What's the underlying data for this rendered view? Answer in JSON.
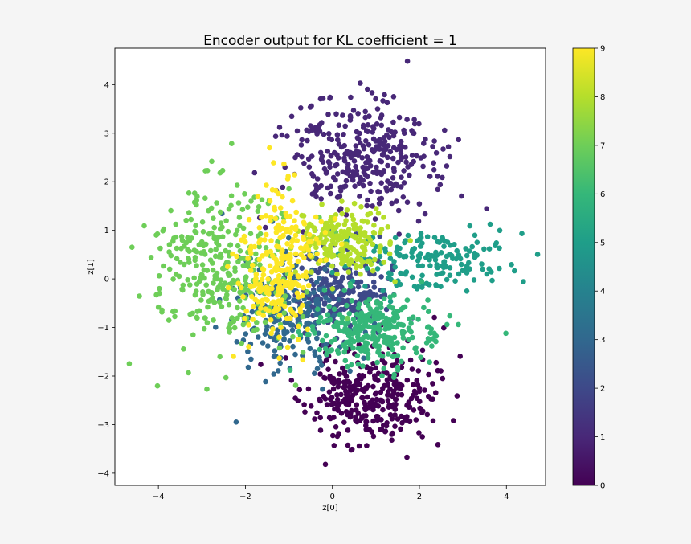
{
  "chart_data": {
    "type": "scatter",
    "title": "Encoder output for KL coefficient = 1",
    "xlabel": "z[0]",
    "ylabel": "z[1]",
    "xlim": [
      -5,
      4.9
    ],
    "ylim": [
      -4.25,
      4.75
    ],
    "x_ticks": [
      -4,
      -2,
      0,
      2,
      4
    ],
    "x_tick_labels": [
      "−4",
      "−2",
      "0",
      "2",
      "4"
    ],
    "y_ticks": [
      -4,
      -3,
      -2,
      -1,
      0,
      1,
      2,
      3,
      4
    ],
    "y_tick_labels": [
      "−4",
      "−3",
      "−2",
      "−1",
      "0",
      "1",
      "2",
      "3",
      "4"
    ],
    "grid": false,
    "colorbar": {
      "colormap": "viridis",
      "range": [
        0,
        9
      ],
      "ticks": [
        0,
        1,
        2,
        3,
        4,
        5,
        6,
        7,
        8,
        9
      ],
      "tick_labels": [
        "0",
        "1",
        "2",
        "3",
        "4",
        "5",
        "6",
        "7",
        "8",
        "9"
      ],
      "stops": [
        "#440154",
        "#482878",
        "#3e4989",
        "#31688e",
        "#26828e",
        "#1f9e89",
        "#35b779",
        "#6ece58",
        "#b5de2b",
        "#fde725"
      ]
    },
    "clusters": [
      {
        "label": 0,
        "color": "#440154",
        "center": [
          0.85,
          -2.45
        ],
        "spread": [
          0.72,
          0.48
        ],
        "n": 320,
        "seed": 11
      },
      {
        "label": 1,
        "color": "#482878",
        "center": [
          0.65,
          2.45
        ],
        "spread": [
          0.85,
          0.62
        ],
        "n": 330,
        "seed": 23
      },
      {
        "label": 2,
        "color": "#3e4989",
        "center": [
          0.25,
          -0.3
        ],
        "spread": [
          0.55,
          0.42
        ],
        "n": 210,
        "seed": 37
      },
      {
        "label": 3,
        "color": "#31688e",
        "center": [
          -1.0,
          -0.6
        ],
        "spread": [
          0.6,
          0.7
        ],
        "n": 220,
        "seed": 41
      },
      {
        "label": 5,
        "color": "#1f9e89",
        "center": [
          2.2,
          0.4
        ],
        "spread": [
          0.95,
          0.3
        ],
        "n": 170,
        "seed": 53
      },
      {
        "label": 6,
        "color": "#35b779",
        "center": [
          0.9,
          -1.05
        ],
        "spread": [
          0.75,
          0.35
        ],
        "n": 280,
        "seed": 67
      },
      {
        "label": 7,
        "color": "#6ece58",
        "center": [
          -2.55,
          0.3
        ],
        "spread": [
          0.85,
          0.85
        ],
        "n": 340,
        "seed": 71
      },
      {
        "label": 8,
        "color": "#b5de2b",
        "center": [
          0.2,
          0.8
        ],
        "spread": [
          0.55,
          0.35
        ],
        "n": 200,
        "seed": 83
      },
      {
        "label": 9,
        "color": "#fde725",
        "center": [
          -1.25,
          0.2
        ],
        "spread": [
          0.45,
          0.8
        ],
        "n": 260,
        "seed": 97
      }
    ]
  }
}
